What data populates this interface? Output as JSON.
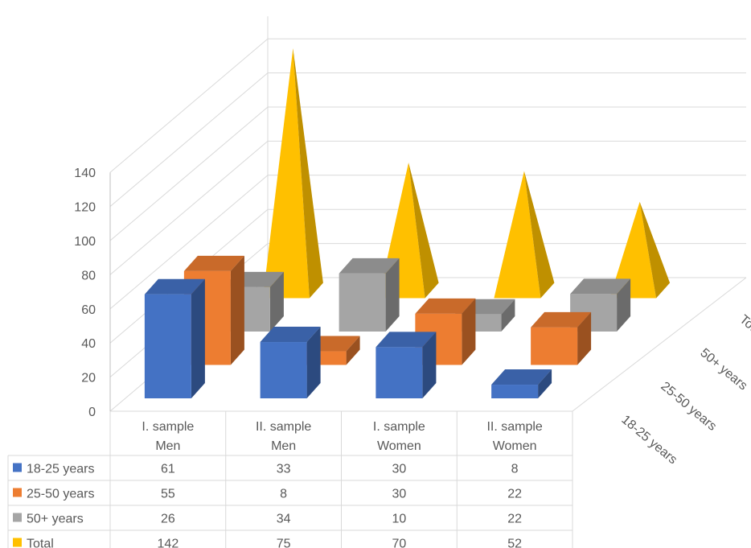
{
  "chart_data": {
    "type": "bar",
    "style": "3d-column-with-data-table",
    "categories": [
      [
        "I. sample",
        "Men"
      ],
      [
        "II. sample",
        "Men"
      ],
      [
        "I. sample",
        "Women"
      ],
      [
        "II. sample",
        "Women"
      ]
    ],
    "series": [
      {
        "name": "18-25 years",
        "values": [
          61,
          33,
          30,
          8
        ],
        "color": "#4472c4",
        "shape": "box"
      },
      {
        "name": "25-50 years",
        "values": [
          55,
          8,
          30,
          22
        ],
        "color": "#ed7d31",
        "shape": "box"
      },
      {
        "name": "50+ years",
        "values": [
          26,
          34,
          10,
          22
        ],
        "color": "#a5a5a5",
        "shape": "box"
      },
      {
        "name": "Total",
        "values": [
          142,
          75,
          70,
          52
        ],
        "color": "#ffc000",
        "shape": "pyramid"
      }
    ],
    "y_ticks": [
      "0",
      "20",
      "40",
      "60",
      "80",
      "100",
      "120",
      "140"
    ],
    "ylim": [
      0,
      140
    ],
    "grid": true,
    "legend": "data-table-below",
    "title": "",
    "xlabel": "",
    "ylabel": ""
  }
}
